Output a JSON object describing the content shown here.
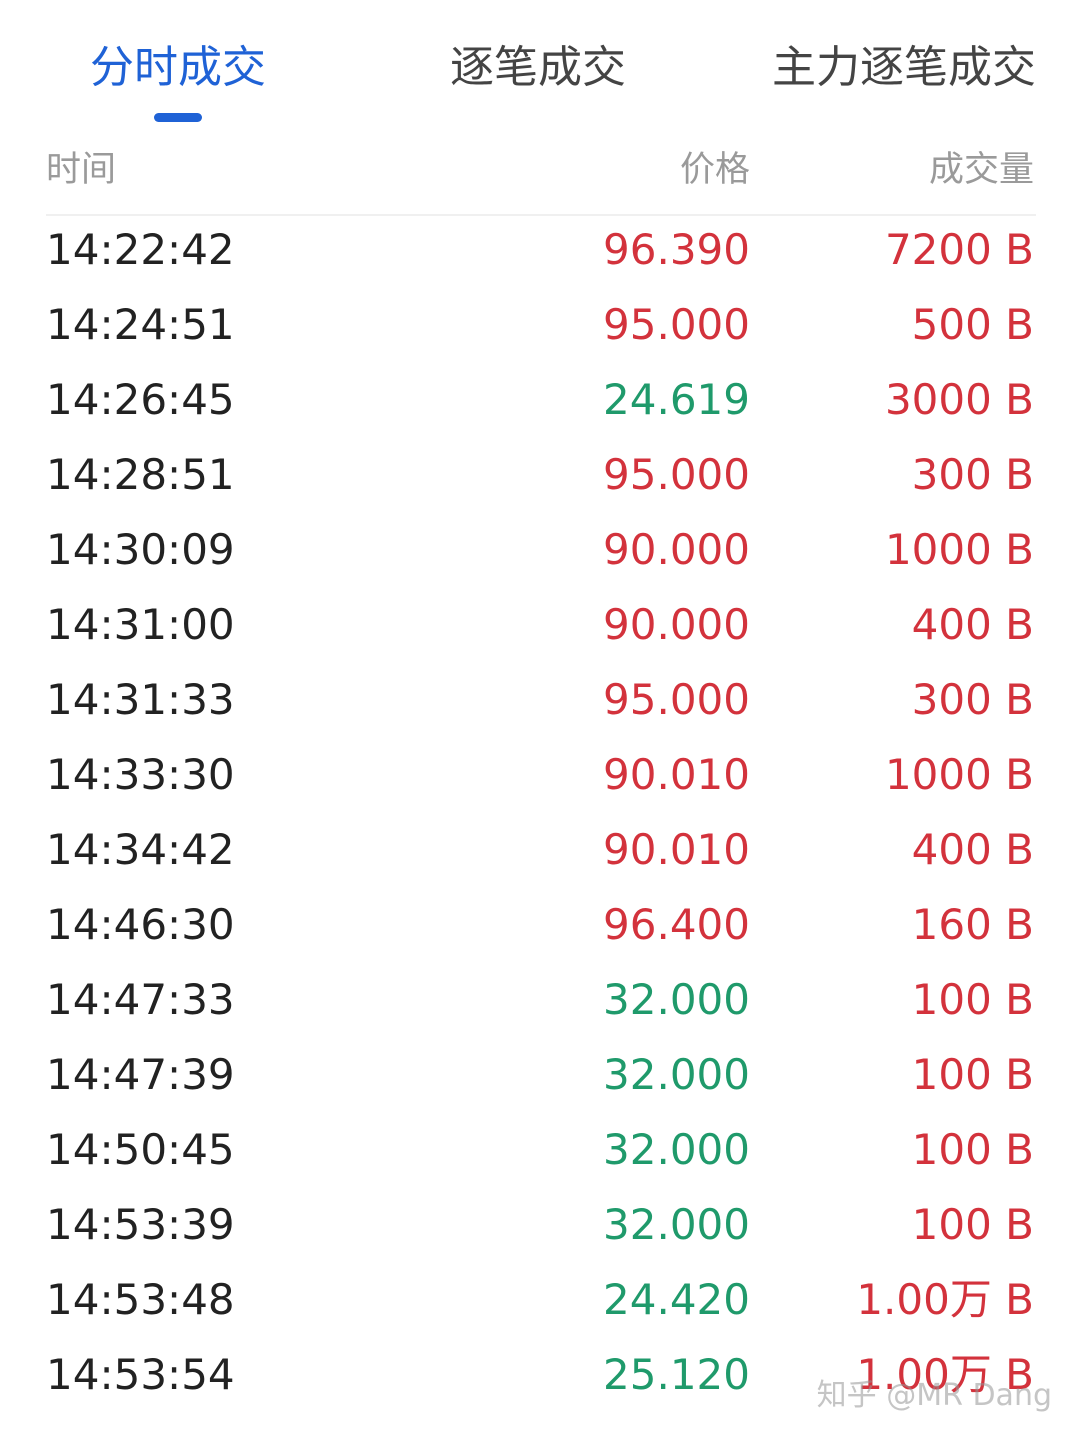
{
  "tabs": [
    {
      "label": "分时成交",
      "active": true
    },
    {
      "label": "逐笔成交",
      "active": false
    },
    {
      "label": "主力逐笔成交",
      "active": false
    }
  ],
  "table": {
    "header": [
      "时间",
      "价格",
      "成交量"
    ],
    "volume_color": "#d3323c",
    "rows": [
      {
        "time": "14:22:42",
        "price": "96.390",
        "volume": "7200 B",
        "price_color": "#d3323c"
      },
      {
        "time": "14:24:51",
        "price": "95.000",
        "volume": "500 B",
        "price_color": "#d3323c"
      },
      {
        "time": "14:26:45",
        "price": "24.619",
        "volume": "3000 B",
        "price_color": "#1f9a6b"
      },
      {
        "time": "14:28:51",
        "price": "95.000",
        "volume": "300 B",
        "price_color": "#d3323c"
      },
      {
        "time": "14:30:09",
        "price": "90.000",
        "volume": "1000 B",
        "price_color": "#d3323c"
      },
      {
        "time": "14:31:00",
        "price": "90.000",
        "volume": "400 B",
        "price_color": "#d3323c"
      },
      {
        "time": "14:31:33",
        "price": "95.000",
        "volume": "300 B",
        "price_color": "#d3323c"
      },
      {
        "time": "14:33:30",
        "price": "90.010",
        "volume": "1000 B",
        "price_color": "#d3323c"
      },
      {
        "time": "14:34:42",
        "price": "90.010",
        "volume": "400 B",
        "price_color": "#d3323c"
      },
      {
        "time": "14:46:30",
        "price": "96.400",
        "volume": "160 B",
        "price_color": "#d3323c"
      },
      {
        "time": "14:47:33",
        "price": "32.000",
        "volume": "100 B",
        "price_color": "#1f9a6b"
      },
      {
        "time": "14:47:39",
        "price": "32.000",
        "volume": "100 B",
        "price_color": "#1f9a6b"
      },
      {
        "time": "14:50:45",
        "price": "32.000",
        "volume": "100 B",
        "price_color": "#1f9a6b"
      },
      {
        "time": "14:53:39",
        "price": "32.000",
        "volume": "100 B",
        "price_color": "#1f9a6b"
      },
      {
        "time": "14:53:48",
        "price": "24.420",
        "volume": "1.00万 B",
        "price_color": "#1f9a6b"
      },
      {
        "time": "14:53:54",
        "price": "25.120",
        "volume": "1.00万 B",
        "price_color": "#1f9a6b"
      }
    ]
  },
  "watermark": "知乎 @MR Dang"
}
